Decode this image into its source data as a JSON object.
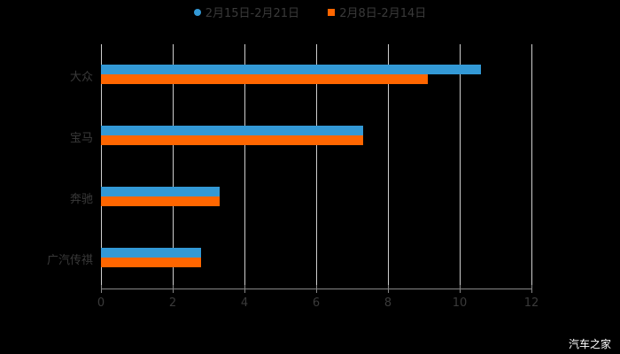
{
  "legend": [
    {
      "label": "2月15日-2月21日",
      "color": "#3399d6",
      "shape": "circle"
    },
    {
      "label": "2月8日-2月14日",
      "color": "#ff6600",
      "shape": "square"
    }
  ],
  "watermark": "汽车之家",
  "chart_data": {
    "type": "bar",
    "orientation": "horizontal",
    "title": "",
    "xlabel": "",
    "ylabel": "",
    "categories": [
      "大众",
      "宝马",
      "奔驰",
      "广汽传祺"
    ],
    "series": [
      {
        "name": "2月15日-2月21日",
        "color": "#3399d6",
        "values": [
          10.6,
          7.3,
          3.3,
          2.8
        ]
      },
      {
        "name": "2月8日-2月14日",
        "color": "#ff6600",
        "values": [
          9.1,
          7.3,
          3.3,
          2.8
        ]
      }
    ],
    "xlim": [
      0,
      12
    ],
    "xticks": [
      "0",
      "2",
      "4",
      "6",
      "8",
      "10",
      "12"
    ],
    "grid": "vertical",
    "legend_position": "top"
  }
}
